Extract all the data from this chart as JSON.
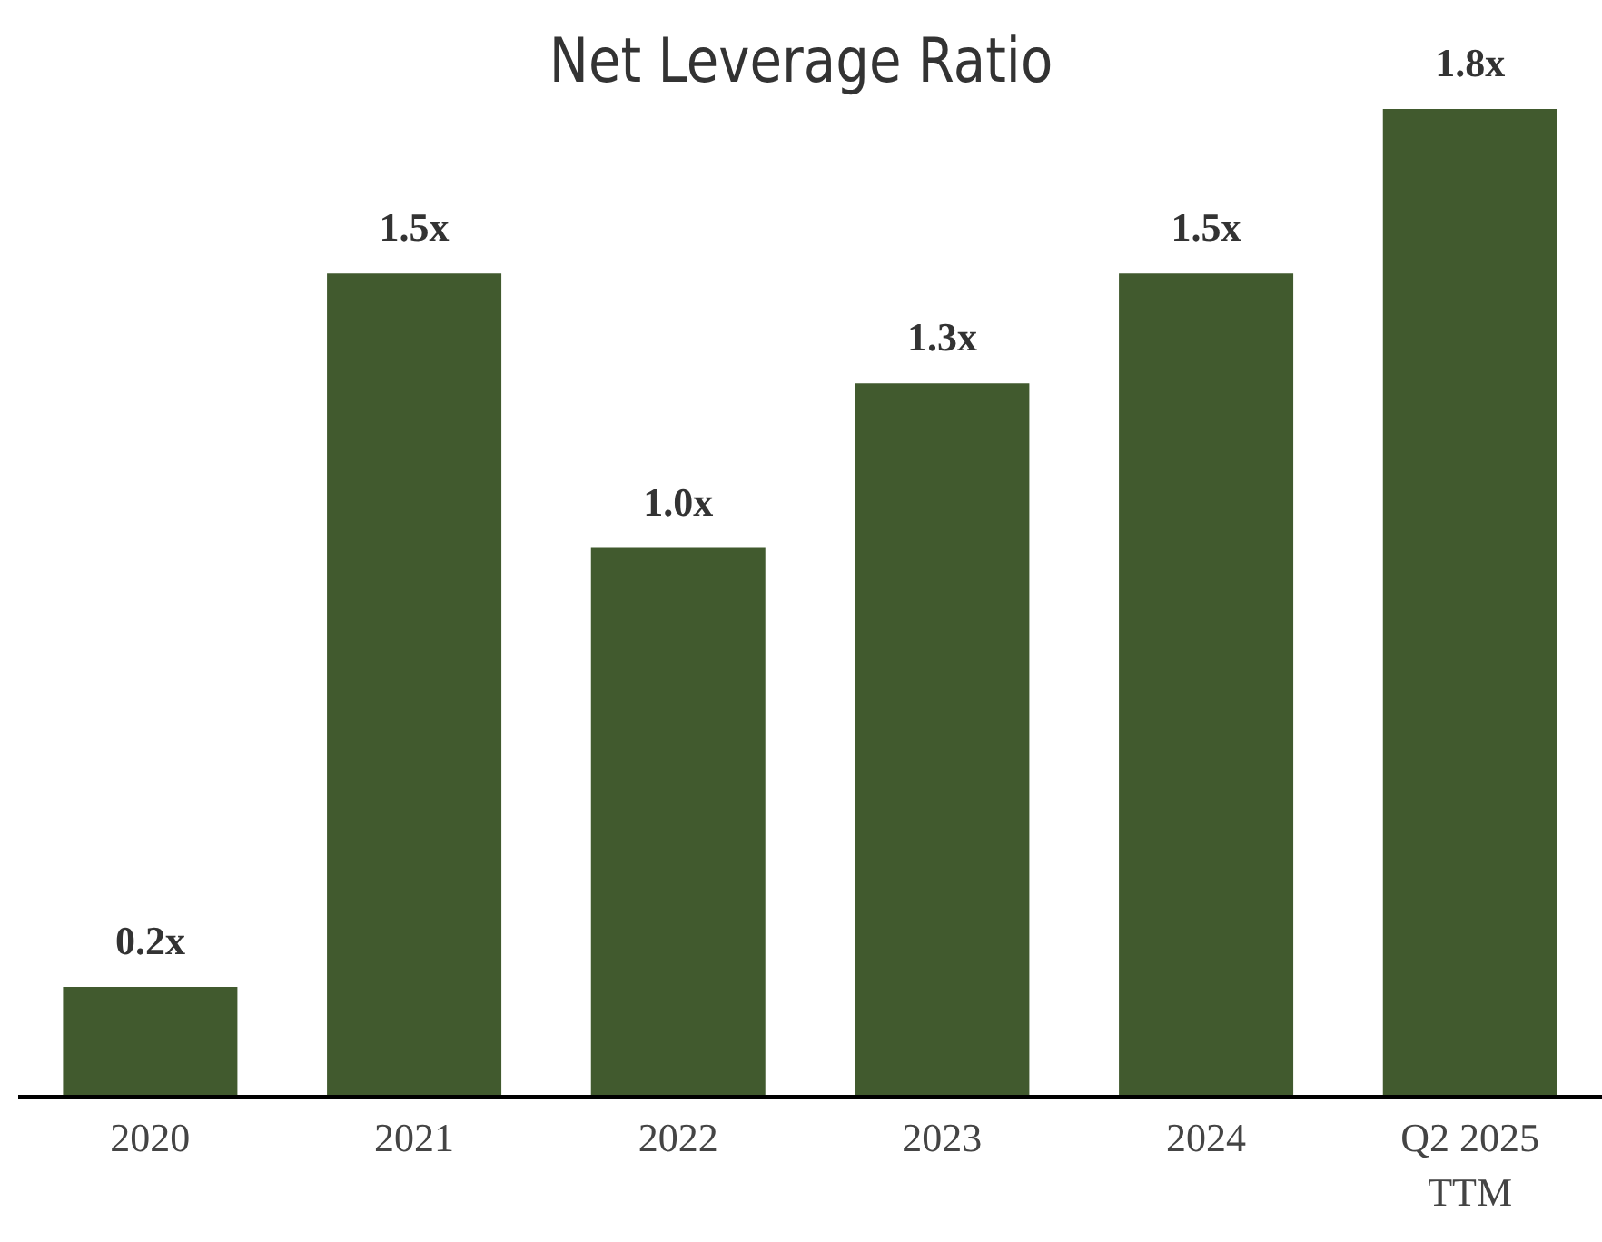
{
  "chart_data": {
    "type": "bar",
    "title": "Net Leverage Ratio",
    "categories": [
      "2020",
      "2021",
      "2022",
      "2023",
      "2024",
      "Q2 2025 TTM"
    ],
    "values": [
      0.2,
      1.5,
      1.0,
      1.3,
      1.5,
      1.8
    ],
    "value_labels": [
      "0.2x",
      "1.5x",
      "1.0x",
      "1.3x",
      "1.5x",
      "1.8x"
    ],
    "color": "#415a2e"
  }
}
